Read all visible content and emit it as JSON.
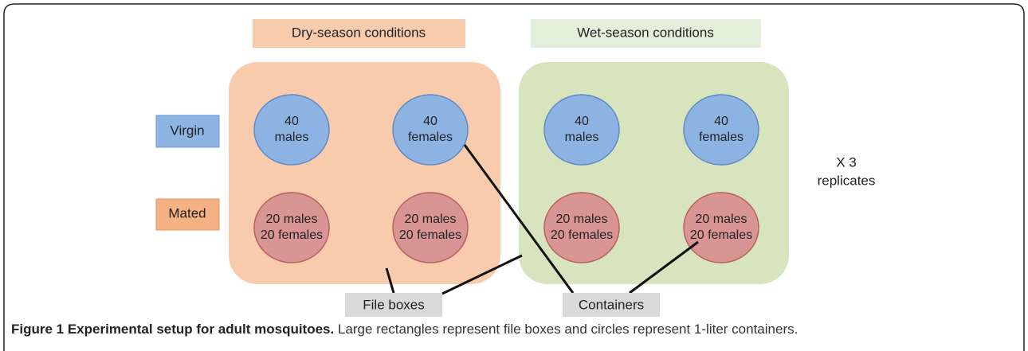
{
  "conditions": [
    {
      "label": "Dry-season conditions"
    },
    {
      "label": "Wet-season conditions"
    }
  ],
  "rows": [
    {
      "label": "Virgin"
    },
    {
      "label": "Mated"
    }
  ],
  "containers": [
    {
      "lines": [
        "40",
        "males"
      ]
    },
    {
      "lines": [
        "40",
        "females"
      ]
    },
    {
      "lines": [
        "40",
        "males"
      ]
    },
    {
      "lines": [
        "40",
        "females"
      ]
    },
    {
      "lines": [
        "20 males",
        "20 females"
      ]
    },
    {
      "lines": [
        "20 males",
        "20 females"
      ]
    },
    {
      "lines": [
        "20 males",
        "20 females"
      ]
    },
    {
      "lines": [
        "20 males",
        "20 females"
      ]
    }
  ],
  "replicates": [
    "X 3",
    "replicates"
  ],
  "callouts": [
    {
      "label": "File boxes"
    },
    {
      "label": "Containers"
    }
  ],
  "caption": {
    "title": "Figure 1 Experimental setup for adult mosquitoes.",
    "text": " Large rectangles represent file boxes and circles represent 1-liter containers."
  }
}
